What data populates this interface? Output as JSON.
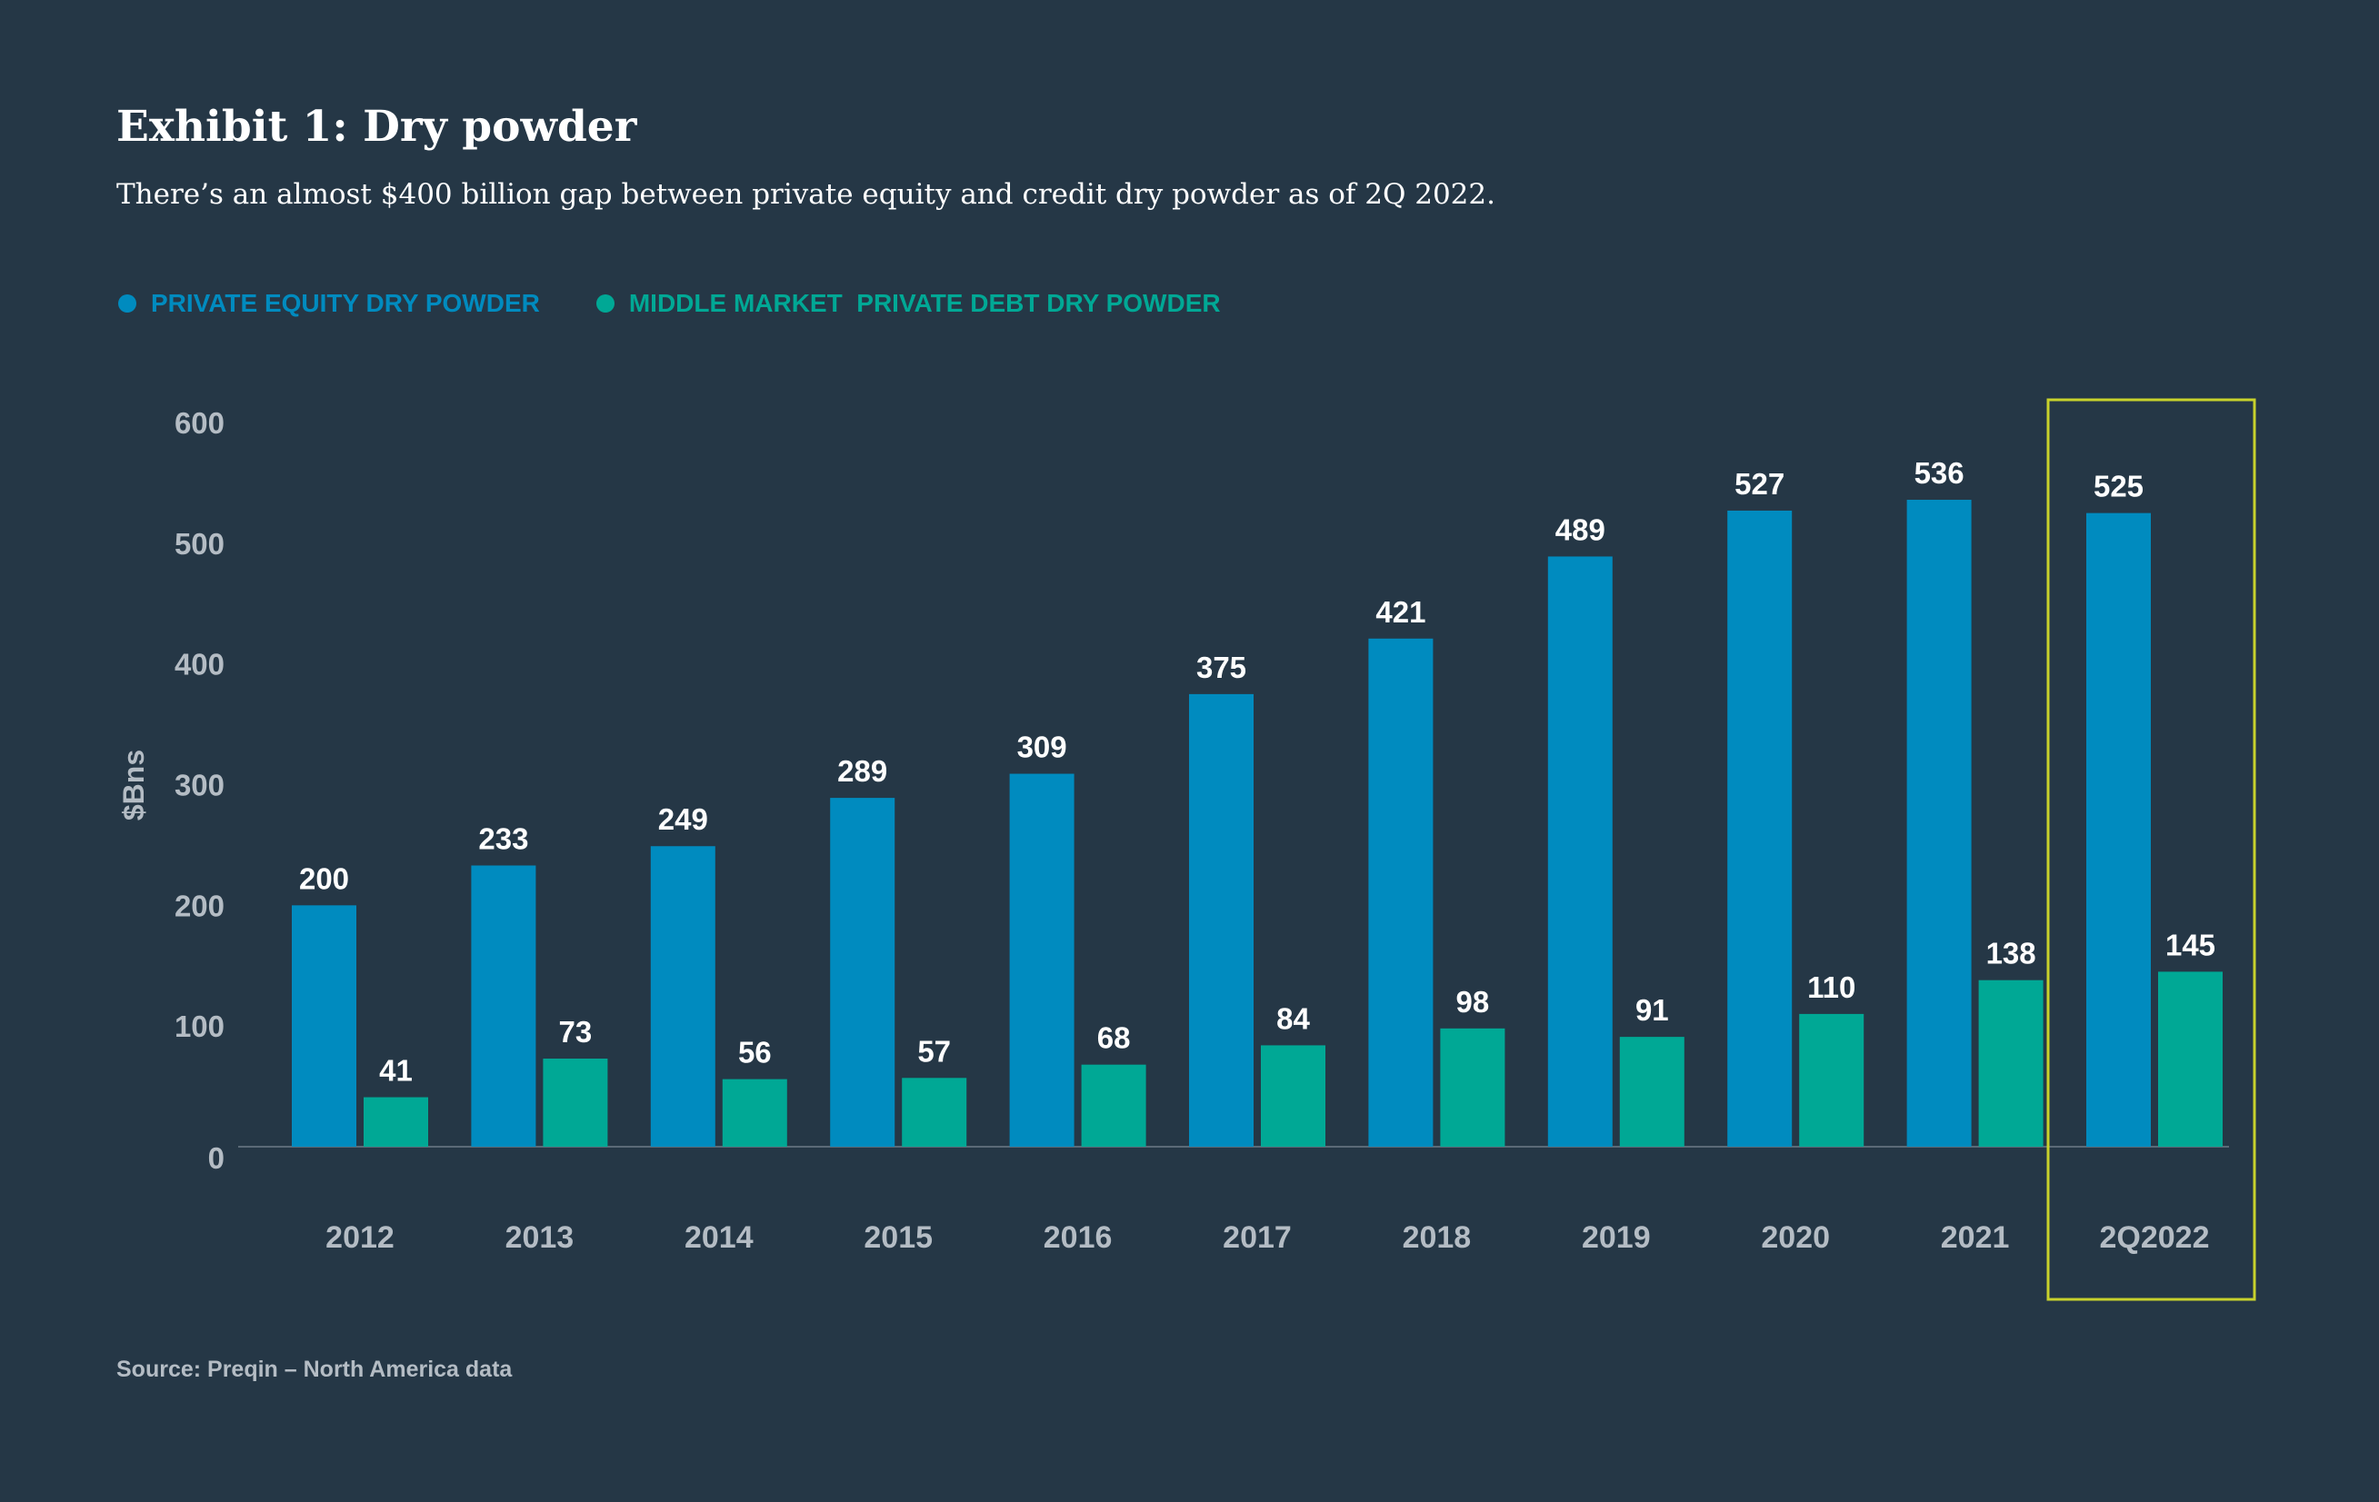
{
  "header": {
    "title": "Exhibit 1: Dry powder",
    "subtitle": "There’s an almost $400 billion gap between private equity and credit dry powder as of 2Q 2022."
  },
  "legend": {
    "items": [
      {
        "label": "PRIVATE EQUITY DRY POWDER",
        "color": "#008bbf"
      },
      {
        "label": "MIDDLE MARKET  PRIVATE DEBT DRY POWDER",
        "color": "#00a895"
      }
    ]
  },
  "source": "Source: Preqin – North America data",
  "colors": {
    "background": "#253746",
    "private_equity": "#008bbf",
    "private_debt": "#00a895",
    "highlight": "#c8d22c",
    "axis_text": "#b4bcc4",
    "label_text": "#ffffff"
  },
  "chart_data": {
    "type": "bar",
    "title": "Exhibit 1: Dry powder",
    "xlabel": "",
    "ylabel": "$Bns",
    "ylim": [
      0,
      600
    ],
    "yticks": [
      0,
      100,
      200,
      300,
      400,
      500,
      600
    ],
    "grid": false,
    "categories": [
      "2012",
      "2013",
      "2014",
      "2015",
      "2016",
      "2017",
      "2018",
      "2019",
      "2020",
      "2021",
      "2Q2022"
    ],
    "series": [
      {
        "name": "PRIVATE EQUITY DRY POWDER",
        "values": [
          200,
          233,
          249,
          289,
          309,
          375,
          421,
          489,
          527,
          536,
          525
        ]
      },
      {
        "name": "MIDDLE MARKET  PRIVATE DEBT DRY POWDER",
        "values": [
          41,
          73,
          56,
          57,
          68,
          84,
          98,
          91,
          110,
          138,
          145
        ]
      }
    ],
    "highlighted_category": "2Q2022",
    "legend_position": "top-left"
  }
}
